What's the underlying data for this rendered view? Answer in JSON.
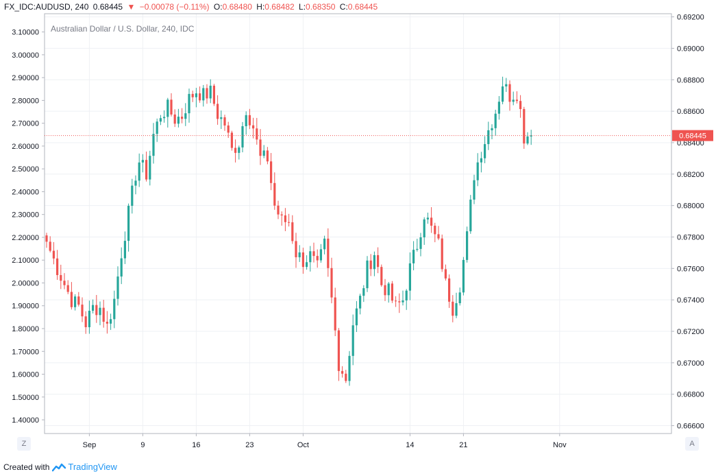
{
  "header": {
    "symbol": "FX_IDC:AUDUSD, 240",
    "last": "0.68445",
    "arrow": "▼",
    "change": "−0.00078 (−0.11%)",
    "o_label": "O:",
    "o_value": "0.68480",
    "h_label": "H:",
    "h_value": "0.68482",
    "l_label": "L:",
    "l_value": "0.68350",
    "c_label": "C:",
    "c_value": "0.68445"
  },
  "chart_data": {
    "type": "candlestick",
    "title": "Australian Dollar / U.S. Dollar, 240, IDC",
    "left_axis": {
      "ticks": [
        "3.10000",
        "3.00000",
        "2.90000",
        "2.80000",
        "2.70000",
        "2.60000",
        "2.50000",
        "2.40000",
        "2.30000",
        "2.20000",
        "2.10000",
        "2.00000",
        "1.90000",
        "1.80000",
        "1.70000",
        "1.60000",
        "1.50000",
        "1.40000"
      ],
      "range": [
        1.34,
        3.18
      ]
    },
    "right_axis": {
      "ticks": [
        "0.69200",
        "0.69000",
        "0.68800",
        "0.68600",
        "0.68400",
        "0.68200",
        "0.68000",
        "0.67800",
        "0.67600",
        "0.67400",
        "0.67200",
        "0.67000",
        "0.66800",
        "0.66600"
      ],
      "range": [
        0.6655,
        0.6922
      ]
    },
    "x_ticks": [
      {
        "label": "Sep",
        "index": 12
      },
      {
        "label": "9",
        "index": 27
      },
      {
        "label": "16",
        "index": 42
      },
      {
        "label": "23",
        "index": 57
      },
      {
        "label": "Oct",
        "index": 72
      },
      {
        "label": "14",
        "index": 102
      },
      {
        "label": "21",
        "index": 117
      },
      {
        "label": "Nov",
        "index": 144
      }
    ],
    "last_price": 0.68445,
    "last_price_label": "0.68445",
    "colors": {
      "up": "#26a69a",
      "down": "#ef5350",
      "grid": "#eef0f4",
      "axis": "#b2b5be"
    },
    "anchors": [
      {
        "i": 0,
        "p": 0.6777
      },
      {
        "i": 3,
        "p": 0.676
      },
      {
        "i": 7,
        "p": 0.674
      },
      {
        "i": 9,
        "p": 0.6736
      },
      {
        "i": 11,
        "p": 0.6725
      },
      {
        "i": 13,
        "p": 0.6735
      },
      {
        "i": 15,
        "p": 0.6735
      },
      {
        "i": 17,
        "p": 0.6723
      },
      {
        "i": 19,
        "p": 0.674
      },
      {
        "i": 21,
        "p": 0.677
      },
      {
        "i": 23,
        "p": 0.6795
      },
      {
        "i": 25,
        "p": 0.682
      },
      {
        "i": 26,
        "p": 0.6828
      },
      {
        "i": 28,
        "p": 0.682
      },
      {
        "i": 30,
        "p": 0.6845
      },
      {
        "i": 32,
        "p": 0.6858
      },
      {
        "i": 34,
        "p": 0.6862
      },
      {
        "i": 36,
        "p": 0.6855
      },
      {
        "i": 38,
        "p": 0.6857
      },
      {
        "i": 40,
        "p": 0.6868
      },
      {
        "i": 42,
        "p": 0.6873
      },
      {
        "i": 44,
        "p": 0.687
      },
      {
        "i": 46,
        "p": 0.6872
      },
      {
        "i": 48,
        "p": 0.6858
      },
      {
        "i": 50,
        "p": 0.6852
      },
      {
        "i": 52,
        "p": 0.6835
      },
      {
        "i": 54,
        "p": 0.684
      },
      {
        "i": 56,
        "p": 0.6862
      },
      {
        "i": 58,
        "p": 0.685
      },
      {
        "i": 60,
        "p": 0.683
      },
      {
        "i": 62,
        "p": 0.683
      },
      {
        "i": 64,
        "p": 0.68
      },
      {
        "i": 66,
        "p": 0.679
      },
      {
        "i": 68,
        "p": 0.679
      },
      {
        "i": 70,
        "p": 0.677
      },
      {
        "i": 72,
        "p": 0.6765
      },
      {
        "i": 74,
        "p": 0.6768
      },
      {
        "i": 76,
        "p": 0.676
      },
      {
        "i": 78,
        "p": 0.6775
      },
      {
        "i": 80,
        "p": 0.674
      },
      {
        "i": 82,
        "p": 0.67
      },
      {
        "i": 84,
        "p": 0.669
      },
      {
        "i": 86,
        "p": 0.6725
      },
      {
        "i": 88,
        "p": 0.674
      },
      {
        "i": 90,
        "p": 0.676
      },
      {
        "i": 92,
        "p": 0.677
      },
      {
        "i": 94,
        "p": 0.675
      },
      {
        "i": 96,
        "p": 0.6745
      },
      {
        "i": 98,
        "p": 0.6735
      },
      {
        "i": 100,
        "p": 0.674
      },
      {
        "i": 102,
        "p": 0.676
      },
      {
        "i": 104,
        "p": 0.6775
      },
      {
        "i": 106,
        "p": 0.6795
      },
      {
        "i": 108,
        "p": 0.6785
      },
      {
        "i": 110,
        "p": 0.6775
      },
      {
        "i": 112,
        "p": 0.675
      },
      {
        "i": 114,
        "p": 0.6735
      },
      {
        "i": 116,
        "p": 0.675
      },
      {
        "i": 118,
        "p": 0.678
      },
      {
        "i": 120,
        "p": 0.682
      },
      {
        "i": 122,
        "p": 0.6835
      },
      {
        "i": 124,
        "p": 0.6848
      },
      {
        "i": 126,
        "p": 0.686
      },
      {
        "i": 128,
        "p": 0.6878
      },
      {
        "i": 130,
        "p": 0.687
      },
      {
        "i": 132,
        "p": 0.6872
      },
      {
        "i": 133,
        "p": 0.686
      },
      {
        "i": 134,
        "p": 0.6844
      },
      {
        "i": 135,
        "p": 0.6845
      },
      {
        "i": 136,
        "p": 0.68445
      }
    ]
  },
  "buttons": {
    "left": "Z",
    "right": "A"
  },
  "footer": {
    "created_with": "Created with",
    "brand": "TradingView"
  }
}
